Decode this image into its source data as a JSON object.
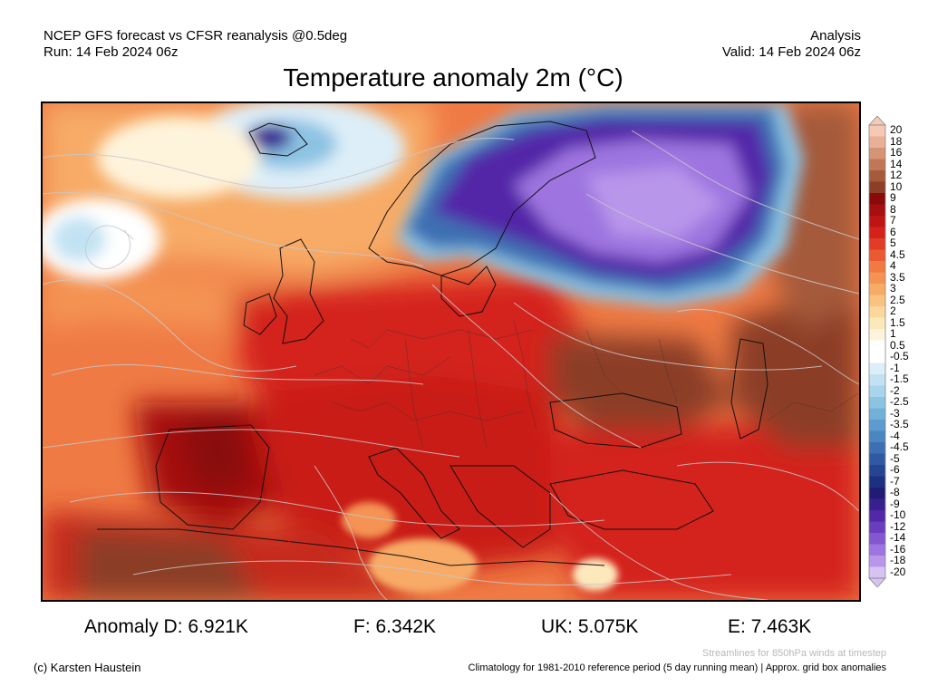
{
  "header": {
    "line1": "NCEP GFS forecast vs CFSR reanalysis @0.5deg",
    "line2": "Run: 14 Feb 2024 06z",
    "right1": "Analysis",
    "right2": "Valid: 14 Feb 2024 06z"
  },
  "title": "Temperature anomaly 2m (°C)",
  "colorbar": {
    "labels": [
      "20",
      "18",
      "16",
      "14",
      "12",
      "10",
      "9",
      "8",
      "7",
      "6",
      "5",
      "4.5",
      "4",
      "3.5",
      "3",
      "2.5",
      "2",
      "1.5",
      "1",
      "0.5",
      "-0.5",
      "-1",
      "-1.5",
      "-2",
      "-2.5",
      "-3",
      "-3.5",
      "-4",
      "-4.5",
      "-5",
      "-6",
      "-7",
      "-8",
      "-9",
      "-10",
      "-12",
      "-14",
      "-16",
      "-18",
      "-20"
    ],
    "colors": [
      "#f6c9b4",
      "#eab097",
      "#d59473",
      "#bf7757",
      "#a55a3b",
      "#8c3e26",
      "#8a0a0a",
      "#a50f0f",
      "#bd1515",
      "#d4221b",
      "#e03c26",
      "#ea5a32",
      "#f07a41",
      "#f49352",
      "#f7ab66",
      "#f9c27e",
      "#fbd79c",
      "#fde8bc",
      "#fef4dc",
      "#ffffff",
      "#ffffff",
      "#ddeef8",
      "#c2e2f3",
      "#a8d4ec",
      "#8cc3e3",
      "#72b0d8",
      "#5b9bcd",
      "#4a86c0",
      "#3c70b2",
      "#2f5aa3",
      "#254592",
      "#1c3181",
      "#221b74",
      "#3a1f8f",
      "#5228a8",
      "#6a3dbe",
      "#8457d2",
      "#9e74e0",
      "#b896ea",
      "#d6c3f3"
    ]
  },
  "stats": {
    "D": "Anomaly D: 6.921K",
    "F": "F: 6.342K",
    "UK": "UK: 5.075K",
    "E": "E: 7.463K"
  },
  "footer": {
    "streamlines": "Streamlines for 850hPa winds at timestep",
    "copyright": "(c) Karsten Haustein",
    "climatology": "Climatology for 1981-2010 reference period (5 day running mean) | Approx. grid box anomalies"
  }
}
